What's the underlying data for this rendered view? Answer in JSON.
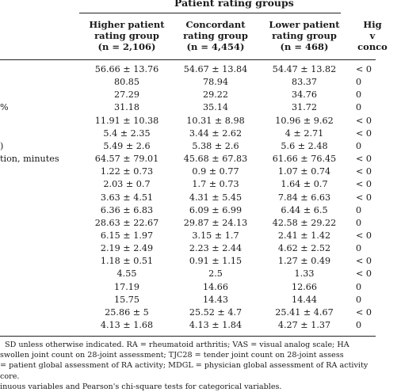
{
  "group_header": "Patient rating groups",
  "columns": [
    {
      "line1": "Higher patient",
      "line2": "rating group",
      "line3": "(n = 2,106)"
    },
    {
      "line1": "Concordant",
      "line2": "rating group",
      "line3": "(n = 4,454)"
    },
    {
      "line1": "Lower patient",
      "line2": "rating group",
      "line3": "(n = 468)"
    },
    {
      "line1": "Hig",
      "line2": "v",
      "line3": "conco"
    }
  ],
  "row_labels": [
    "",
    "",
    "",
    "%",
    "",
    "",
    ")",
    "tion, minutes",
    "",
    "",
    "",
    "",
    "",
    "",
    "",
    "",
    "",
    "",
    "",
    "",
    "",
    ""
  ],
  "rows": [
    {
      "c1": "56.66 ± 13.76",
      "c2": "54.67 ± 13.84",
      "c3": "54.47 ± 13.82",
      "p": "< 0"
    },
    {
      "c1": "80.85",
      "c2": "78.94",
      "c3": "83.37",
      "p": "0"
    },
    {
      "c1": "27.29",
      "c2": "29.22",
      "c3": "34.76",
      "p": "0"
    },
    {
      "c1": "31.18",
      "c2": "35.14",
      "c3": "31.72",
      "p": "0"
    },
    {
      "c1": "11.91 ± 10.38",
      "c2": "10.31 ± 8.98",
      "c3": "10.96 ± 9.62",
      "p": "< 0"
    },
    {
      "c1": "5.4 ± 2.35",
      "c2": "3.44 ± 2.62",
      "c3": "4 ± 2.71",
      "p": "< 0"
    },
    {
      "c1": "5.49 ± 2.6",
      "c2": "5.38 ± 2.6",
      "c3": "5.6 ± 2.48",
      "p": "0"
    },
    {
      "c1": "64.57 ± 79.01",
      "c2": "45.68 ± 67.83",
      "c3": "61.66 ± 76.45",
      "p": "< 0"
    },
    {
      "c1": "1.22 ± 0.73",
      "c2": "0.9 ± 0.77",
      "c3": "1.07 ± 0.74",
      "p": "< 0"
    },
    {
      "c1": "2.03 ± 0.7",
      "c2": "1.7 ± 0.73",
      "c3": "1.64 ± 0.7",
      "p": "< 0"
    },
    {
      "c1": "3.63 ± 4.51",
      "c2": "4.31 ± 5.45",
      "c3": "7.84 ± 6.63",
      "p": "< 0"
    },
    {
      "c1": "6.36 ± 6.83",
      "c2": "6.09 ± 6.99",
      "c3": "6.44 ± 6.5",
      "p": "0"
    },
    {
      "c1": "28.63 ± 22.67",
      "c2": "29.87 ± 24.13",
      "c3": "42.58 ± 29.22",
      "p": "0"
    },
    {
      "c1": "6.15 ± 1.97",
      "c2": "3.15 ± 1.7",
      "c3": "2.41 ± 1.42",
      "p": "< 0"
    },
    {
      "c1": "2.19 ± 2.49",
      "c2": "2.23 ± 2.44",
      "c3": "4.62 ± 2.52",
      "p": "0"
    },
    {
      "c1": "1.18 ± 0.51",
      "c2": "0.91 ± 1.15",
      "c3": "1.27 ± 0.49",
      "p": "< 0"
    },
    {
      "c1": "4.55",
      "c2": "2.5",
      "c3": "1.33",
      "p": "< 0"
    },
    {
      "c1": "17.19",
      "c2": "14.66",
      "c3": "12.66",
      "p": "0"
    },
    {
      "c1": "15.75",
      "c2": "14.43",
      "c3": "14.44",
      "p": "0"
    },
    {
      "c1": "25.86 ± 5",
      "c2": "25.52 ± 4.7",
      "c3": "25.41 ± 4.67",
      "p": "< 0"
    },
    {
      "c1": "4.13 ± 1.68",
      "c2": "4.13 ± 1.84",
      "c3": "4.27 ± 1.37",
      "p": "0"
    }
  ],
  "footnotes": [
    "SD unless otherwise indicated. RA = rheumatoid arthritis; VAS = visual analog scale; HA",
    "swollen joint count on 28-joint assessment; TJC28 = tender joint count on 28-joint assess",
    "= patient global assessment of RA activity; MDGL = physician global assessment of RA activity",
    "core.",
    "inuous variables and Pearson's chi-square tests for categorical variables."
  ]
}
